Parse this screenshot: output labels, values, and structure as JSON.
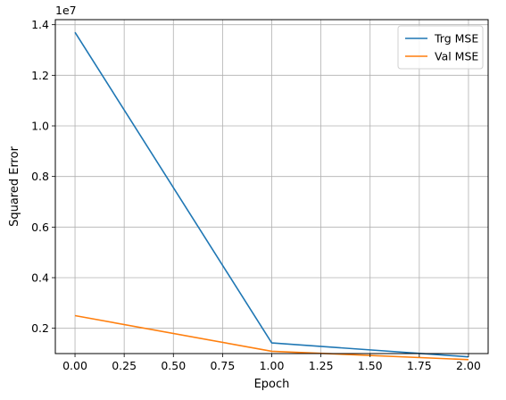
{
  "chart_data": {
    "type": "line",
    "xlabel": "Epoch",
    "ylabel": "Squared Error",
    "y_offset_label": "1e7",
    "xlim": [
      -0.1,
      2.1
    ],
    "ylim": [
      0.1,
      1.42
    ],
    "x_ticks": [
      0.0,
      0.25,
      0.5,
      0.75,
      1.0,
      1.25,
      1.5,
      1.75,
      2.0
    ],
    "x_tick_labels": [
      "0.00",
      "0.25",
      "0.50",
      "0.75",
      "1.00",
      "1.25",
      "1.50",
      "1.75",
      "2.00"
    ],
    "y_ticks": [
      0.2,
      0.4,
      0.6,
      0.8,
      1.0,
      1.2,
      1.4
    ],
    "y_tick_labels": [
      "0.2",
      "0.4",
      "0.6",
      "0.8",
      "1.0",
      "1.2",
      "1.4"
    ],
    "grid": true,
    "legend_position": "top-right",
    "series": [
      {
        "name": "Trg MSE",
        "color": "#1f77b4",
        "x": [
          0,
          1,
          2
        ],
        "y": [
          1.37,
          0.142,
          0.087
        ]
      },
      {
        "name": "Val MSE",
        "color": "#ff7f0e",
        "x": [
          0,
          1,
          2
        ],
        "y": [
          0.25,
          0.109,
          0.076
        ]
      }
    ]
  }
}
